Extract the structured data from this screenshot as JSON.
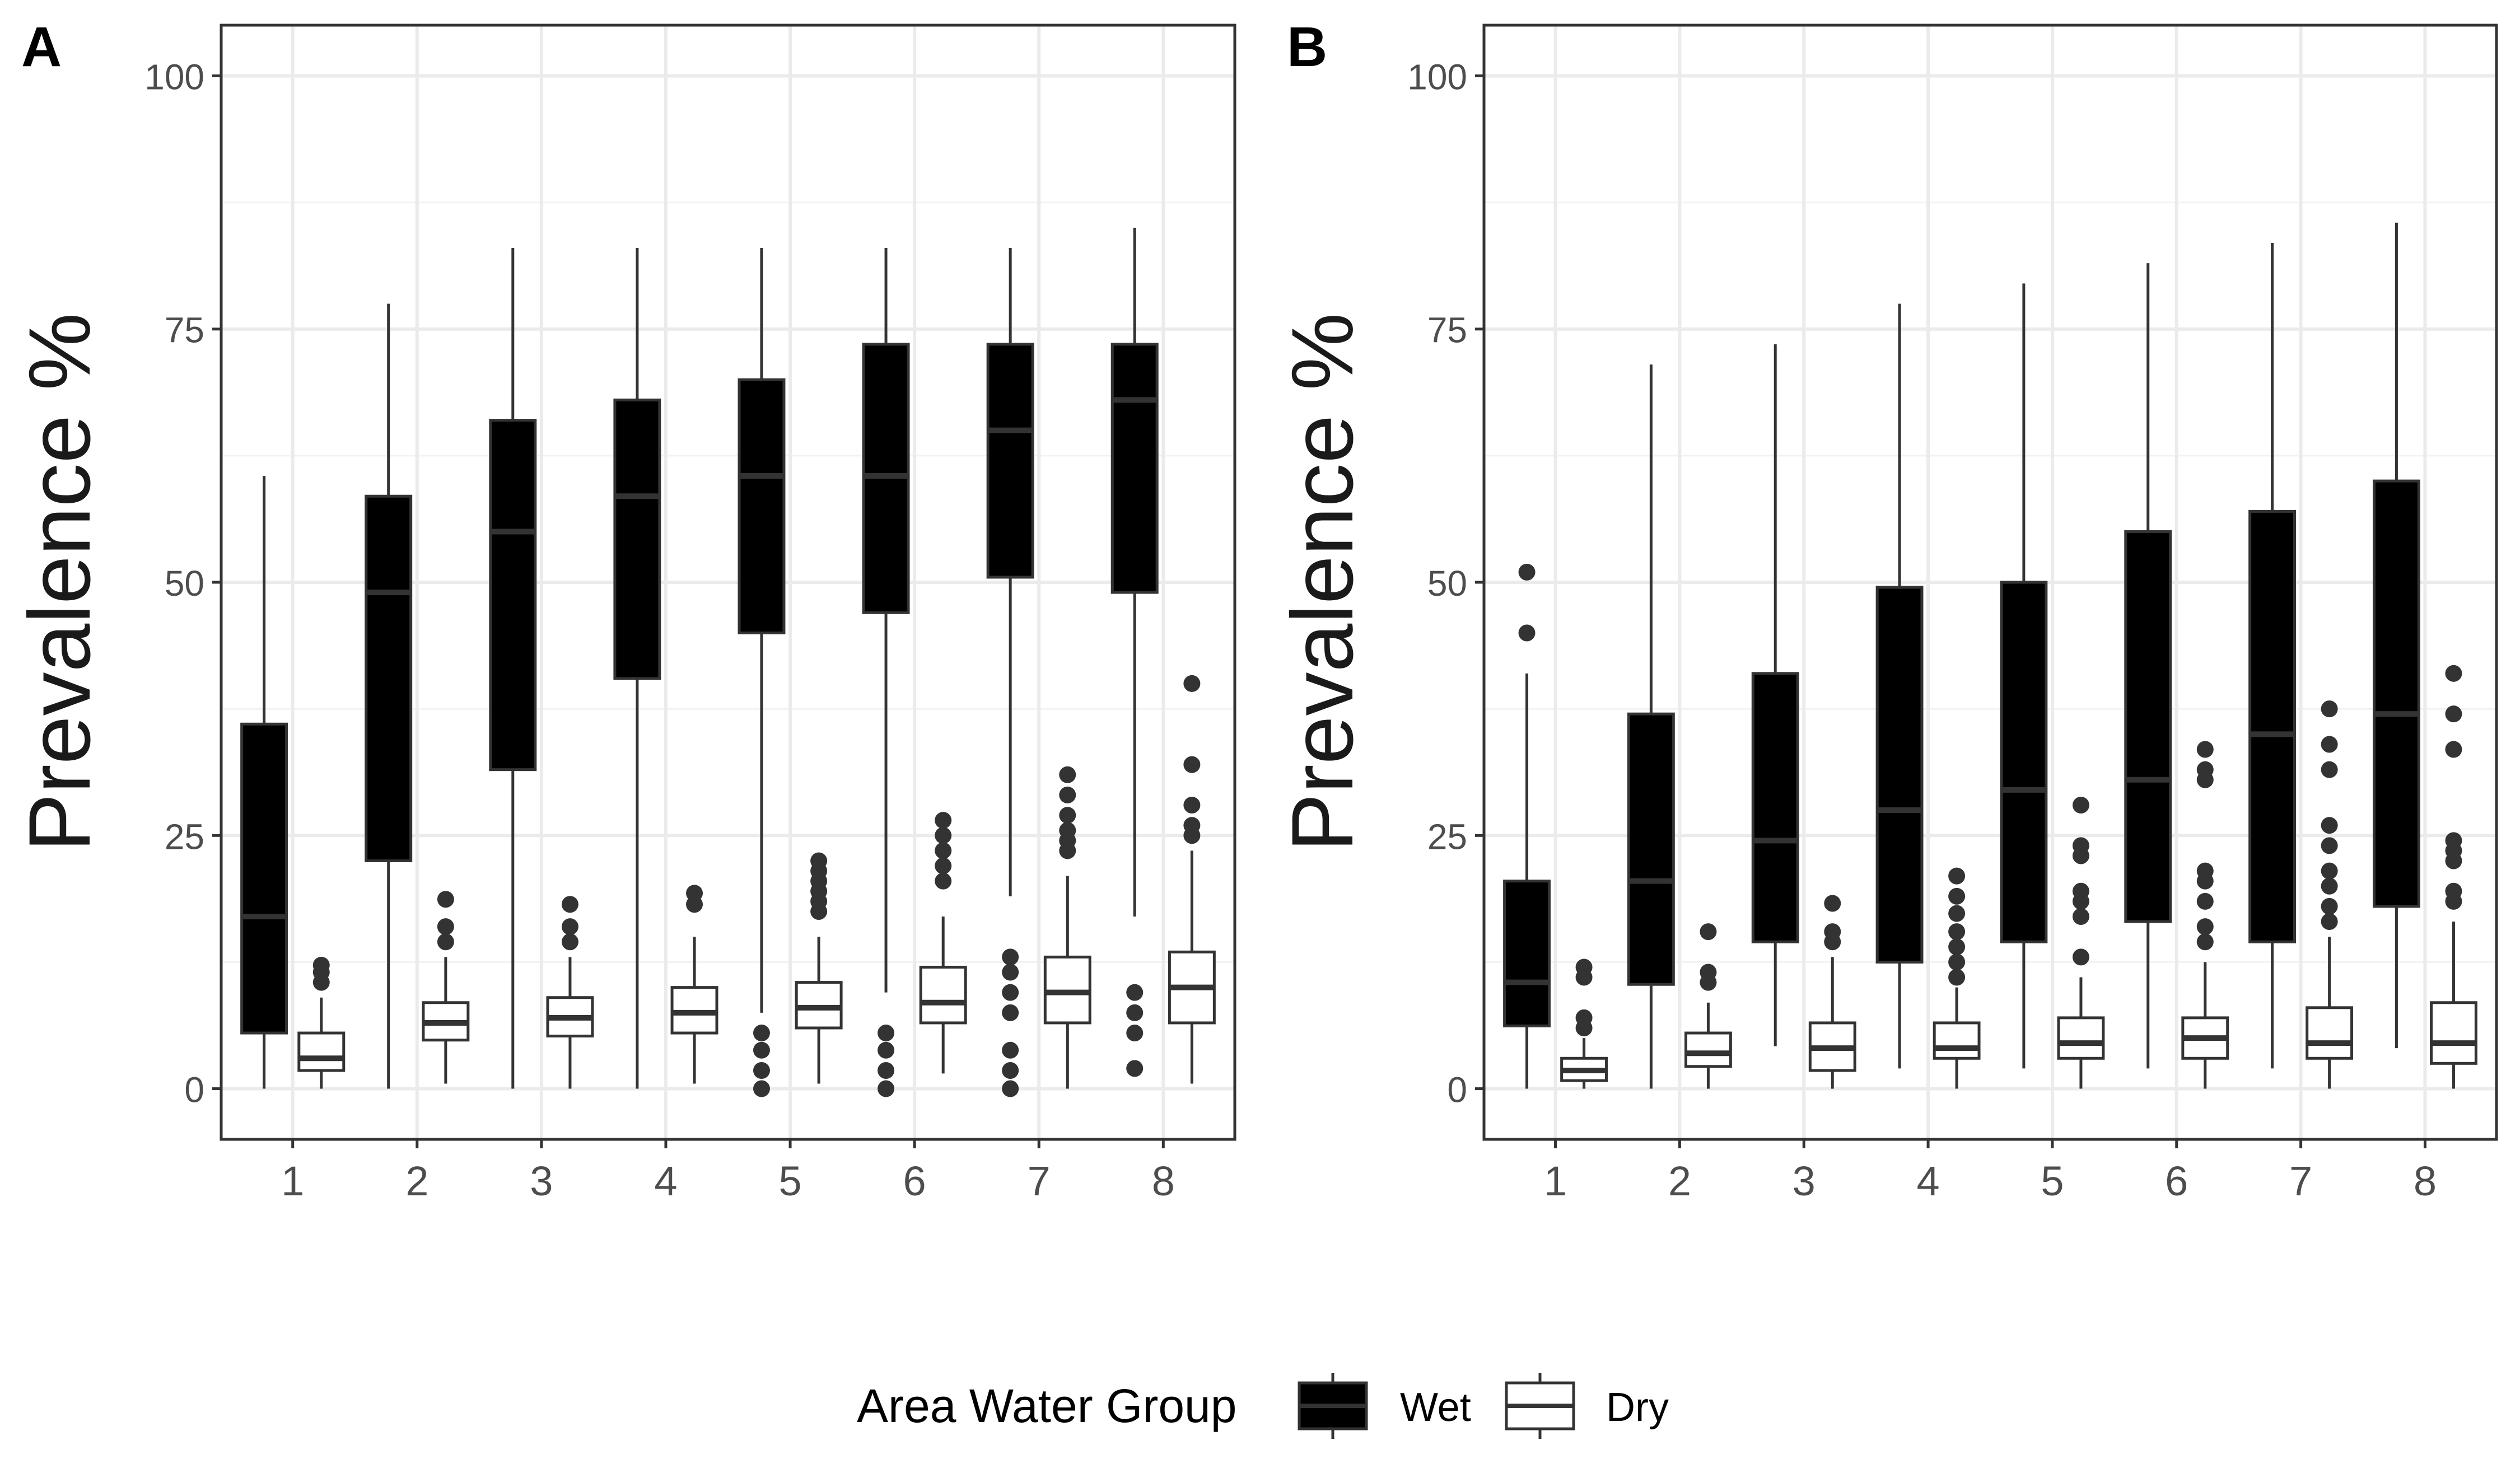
{
  "legend": {
    "title": "Area Water Group",
    "items": [
      {
        "label": "Wet",
        "fill": "#000000",
        "stroke": "#333333"
      },
      {
        "label": "Dry",
        "fill": "#ffffff",
        "stroke": "#333333"
      }
    ]
  },
  "chart_data": [
    {
      "type": "boxplot",
      "panel_label": "A",
      "ylabel": "Prevalence %",
      "xlabel": "",
      "categories": [
        "1",
        "2",
        "3",
        "4",
        "5",
        "6",
        "7",
        "8"
      ],
      "ylim": [
        -5,
        105
      ],
      "yticks": [
        "0",
        "25",
        "50",
        "75",
        "100"
      ],
      "grid": true,
      "series": [
        {
          "name": "Wet",
          "boxes": [
            {
              "min": 0,
              "q1": 5.5,
              "median": 17,
              "q3": 36,
              "max": 60.5,
              "outliers": []
            },
            {
              "min": 0,
              "q1": 22.5,
              "median": 49,
              "q3": 58.5,
              "max": 77.5,
              "outliers": []
            },
            {
              "min": 0,
              "q1": 31.5,
              "median": 55,
              "q3": 66,
              "max": 83,
              "outliers": []
            },
            {
              "min": 0,
              "q1": 40.5,
              "median": 58.5,
              "q3": 68,
              "max": 83,
              "outliers": []
            },
            {
              "min": 7.5,
              "q1": 45,
              "median": 60.5,
              "q3": 70,
              "max": 83,
              "outliers": [
                0,
                1.8,
                3.8,
                5.5
              ]
            },
            {
              "min": 9.5,
              "q1": 47,
              "median": 60.5,
              "q3": 73.5,
              "max": 83,
              "outliers": [
                0,
                1.8,
                3.8,
                5.5
              ]
            },
            {
              "min": 19,
              "q1": 50.5,
              "median": 65,
              "q3": 73.5,
              "max": 83,
              "outliers": [
                0,
                1.8,
                3.8,
                7.5,
                9.5,
                11.5,
                13
              ]
            },
            {
              "min": 17,
              "q1": 49,
              "median": 68,
              "q3": 73.5,
              "max": 85,
              "outliers": [
                2,
                5.5,
                7.5,
                9.5
              ]
            }
          ]
        },
        {
          "name": "Dry",
          "boxes": [
            {
              "min": 0,
              "q1": 1.8,
              "median": 3,
              "q3": 5.5,
              "max": 9,
              "outliers": [
                10.5,
                11.5,
                12.2
              ]
            },
            {
              "min": 0.5,
              "q1": 4.8,
              "median": 6.5,
              "q3": 8.5,
              "max": 13,
              "outliers": [
                14.5,
                16,
                18.7
              ]
            },
            {
              "min": 0,
              "q1": 5.2,
              "median": 7,
              "q3": 9,
              "max": 13,
              "outliers": [
                14.5,
                16,
                18.2
              ]
            },
            {
              "min": 0.5,
              "q1": 5.5,
              "median": 7.5,
              "q3": 10,
              "max": 15,
              "outliers": [
                18.2,
                19.3
              ]
            },
            {
              "min": 0.5,
              "q1": 6,
              "median": 8,
              "q3": 10.5,
              "max": 15,
              "outliers": [
                17.5,
                18.5,
                19.5,
                20.5,
                21.5,
                22.5
              ]
            },
            {
              "min": 1.5,
              "q1": 6.5,
              "median": 8.5,
              "q3": 12,
              "max": 17,
              "outliers": [
                20.5,
                22,
                23.5,
                25,
                26.5
              ]
            },
            {
              "min": 0,
              "q1": 6.5,
              "median": 9.5,
              "q3": 13,
              "max": 21,
              "outliers": [
                23.5,
                24.5,
                25.5,
                27,
                29,
                31
              ]
            },
            {
              "min": 0.5,
              "q1": 6.5,
              "median": 10,
              "q3": 13.5,
              "max": 23.5,
              "outliers": [
                25,
                26,
                28,
                32,
                40
              ]
            }
          ]
        }
      ]
    },
    {
      "type": "boxplot",
      "panel_label": "B",
      "ylabel": "Prevalence %",
      "xlabel": "",
      "categories": [
        "1",
        "2",
        "3",
        "4",
        "5",
        "6",
        "7",
        "8"
      ],
      "ylim": [
        -5,
        105
      ],
      "yticks": [
        "0",
        "25",
        "50",
        "75",
        "100"
      ],
      "grid": true,
      "series": [
        {
          "name": "Wet",
          "boxes": [
            {
              "min": 0,
              "q1": 6.2,
              "median": 10.5,
              "q3": 20.5,
              "max": 41,
              "outliers": [
                45,
                51
              ]
            },
            {
              "min": 0,
              "q1": 10.3,
              "median": 20.5,
              "q3": 37,
              "max": 71.5,
              "outliers": []
            },
            {
              "min": 4.2,
              "q1": 14.5,
              "median": 24.5,
              "q3": 41,
              "max": 73.5,
              "outliers": []
            },
            {
              "min": 2,
              "q1": 12.5,
              "median": 27.5,
              "q3": 49.5,
              "max": 77.5,
              "outliers": []
            },
            {
              "min": 2,
              "q1": 14.5,
              "median": 29.5,
              "q3": 50,
              "max": 79.5,
              "outliers": []
            },
            {
              "min": 2,
              "q1": 16.5,
              "median": 30.5,
              "q3": 55,
              "max": 81.5,
              "outliers": []
            },
            {
              "min": 2,
              "q1": 14.5,
              "median": 35,
              "q3": 57,
              "max": 83.5,
              "outliers": []
            },
            {
              "min": 4,
              "q1": 18,
              "median": 37,
              "q3": 60,
              "max": 85.5,
              "outliers": []
            }
          ]
        },
        {
          "name": "Dry",
          "boxes": [
            {
              "min": 0,
              "q1": 0.8,
              "median": 1.8,
              "q3": 3,
              "max": 5,
              "outliers": [
                6,
                7,
                11,
                12
              ]
            },
            {
              "min": 0,
              "q1": 2.2,
              "median": 3.5,
              "q3": 5.5,
              "max": 8.5,
              "outliers": [
                10.5,
                11.5,
                15.5
              ]
            },
            {
              "min": 0,
              "q1": 1.8,
              "median": 4,
              "q3": 6.5,
              "max": 13,
              "outliers": [
                14.5,
                15.5,
                18.3
              ]
            },
            {
              "min": 0,
              "q1": 3,
              "median": 4,
              "q3": 6.5,
              "max": 10,
              "outliers": [
                11,
                12.5,
                14,
                15.5,
                17.3,
                19,
                21
              ]
            },
            {
              "min": 0,
              "q1": 3,
              "median": 4.5,
              "q3": 7,
              "max": 11,
              "outliers": [
                13,
                17,
                18.5,
                19.5,
                23,
                24,
                28
              ]
            },
            {
              "min": 0,
              "q1": 3,
              "median": 5,
              "q3": 7,
              "max": 12.5,
              "outliers": [
                14.5,
                16,
                18.5,
                20.5,
                21.5,
                30.5,
                31.5,
                33.5
              ]
            },
            {
              "min": 0,
              "q1": 3,
              "median": 4.5,
              "q3": 8,
              "max": 15,
              "outliers": [
                16.5,
                18,
                20,
                21.5,
                24,
                26,
                31.5,
                34,
                37.5
              ]
            },
            {
              "min": 0,
              "q1": 2.5,
              "median": 4.5,
              "q3": 8.5,
              "max": 16.5,
              "outliers": [
                18.5,
                19.5,
                22.5,
                23.5,
                24.5,
                33.5,
                37,
                41
              ]
            }
          ]
        }
      ]
    }
  ]
}
